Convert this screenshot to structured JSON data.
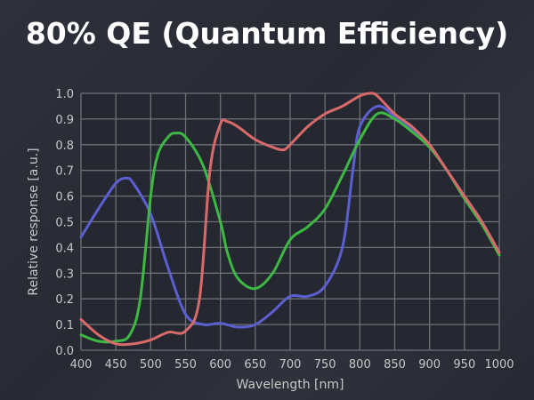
{
  "chart_data": {
    "type": "line",
    "title": "80% QE (Quantum Efficiency)",
    "xlabel": "Wavelength [nm]",
    "ylabel": "Relative response [a.u.]",
    "xlim": [
      400,
      1000
    ],
    "ylim": [
      0,
      1.0
    ],
    "grid": true,
    "xticks": [
      "400",
      "450",
      "500",
      "550",
      "600",
      "650",
      "700",
      "750",
      "800",
      "850",
      "900",
      "950",
      "1000"
    ],
    "yticks": [
      "0.0",
      "0.1",
      "0.2",
      "0.3",
      "0.4",
      "0.5",
      "0.6",
      "0.7",
      "0.8",
      "0.9",
      "1.0"
    ],
    "series": [
      {
        "name": "Blue",
        "color": "#5b5fd1",
        "x": [
          400,
          425,
          450,
          465,
          475,
          500,
          525,
          550,
          575,
          600,
          625,
          650,
          675,
          700,
          725,
          750,
          775,
          790,
          800,
          825,
          850,
          875,
          900,
          925,
          950,
          975,
          1000
        ],
        "y": [
          0.44,
          0.55,
          0.65,
          0.67,
          0.65,
          0.53,
          0.32,
          0.14,
          0.1,
          0.105,
          0.09,
          0.1,
          0.15,
          0.21,
          0.21,
          0.25,
          0.4,
          0.7,
          0.87,
          0.95,
          0.91,
          0.86,
          0.8,
          0.7,
          0.6,
          0.5,
          0.38
        ]
      },
      {
        "name": "Green",
        "color": "#3db843",
        "x": [
          400,
          425,
          450,
          470,
          485,
          500,
          510,
          525,
          535,
          550,
          575,
          600,
          610,
          625,
          650,
          675,
          700,
          725,
          750,
          775,
          800,
          825,
          850,
          875,
          900,
          925,
          950,
          975,
          1000
        ],
        "y": [
          0.06,
          0.035,
          0.035,
          0.06,
          0.2,
          0.6,
          0.76,
          0.83,
          0.845,
          0.83,
          0.72,
          0.5,
          0.38,
          0.28,
          0.24,
          0.3,
          0.43,
          0.48,
          0.55,
          0.68,
          0.82,
          0.92,
          0.9,
          0.85,
          0.79,
          0.7,
          0.59,
          0.49,
          0.37
        ]
      },
      {
        "name": "Red",
        "color": "#d96a6a",
        "x": [
          400,
          425,
          450,
          475,
          500,
          525,
          550,
          570,
          585,
          600,
          610,
          625,
          650,
          675,
          690,
          700,
          725,
          750,
          775,
          800,
          815,
          825,
          850,
          875,
          900,
          925,
          950,
          975,
          1000
        ],
        "y": [
          0.12,
          0.06,
          0.025,
          0.025,
          0.04,
          0.07,
          0.075,
          0.2,
          0.7,
          0.88,
          0.89,
          0.87,
          0.82,
          0.79,
          0.78,
          0.8,
          0.87,
          0.92,
          0.95,
          0.99,
          1.0,
          0.99,
          0.92,
          0.87,
          0.8,
          0.7,
          0.6,
          0.5,
          0.38
        ]
      }
    ]
  }
}
